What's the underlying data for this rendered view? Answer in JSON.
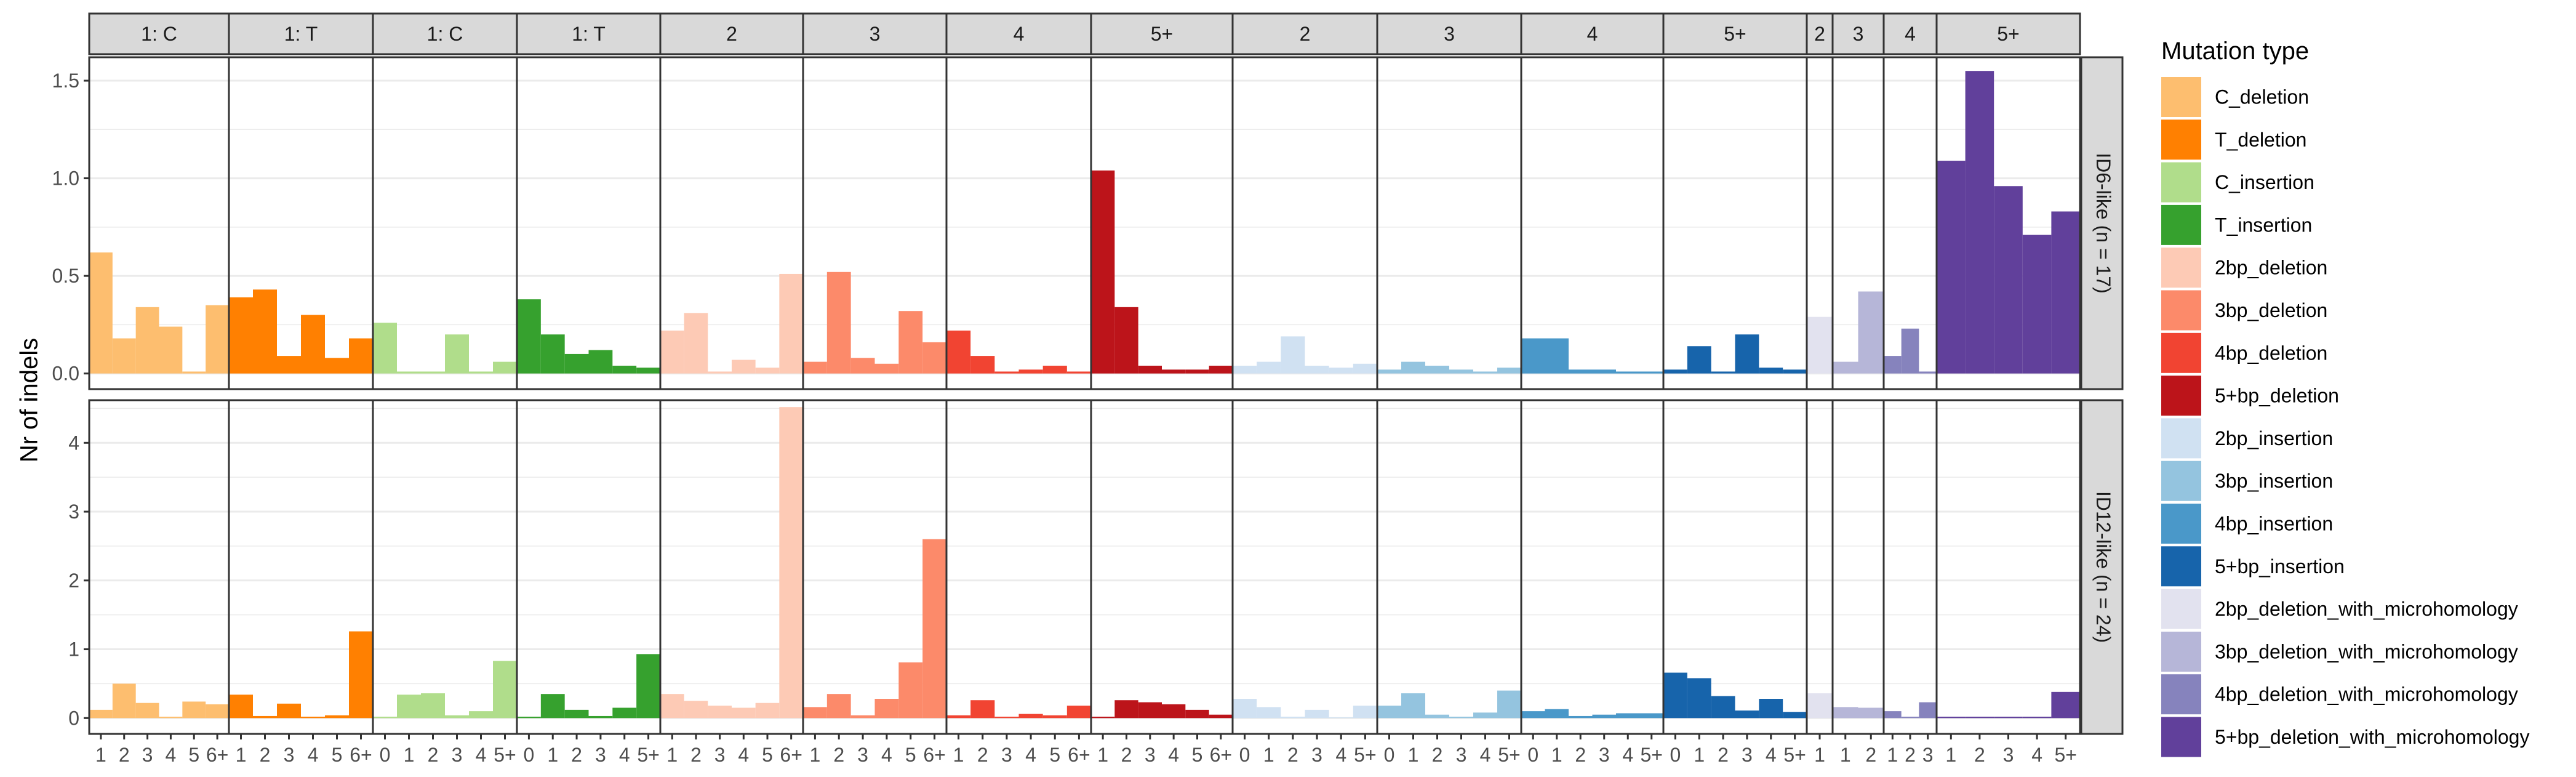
{
  "chart_data": {
    "type": "bar",
    "ylabel": "Nr of indels",
    "legend_title": "Mutation type",
    "legend_position": "right",
    "legend": [
      {
        "label": "C_deletion",
        "color": "#FDBE6F"
      },
      {
        "label": "T_deletion",
        "color": "#FF8001"
      },
      {
        "label": "C_insertion",
        "color": "#B0DD8B"
      },
      {
        "label": "T_insertion",
        "color": "#36A12E"
      },
      {
        "label": "2bp_deletion",
        "color": "#FDCAB5"
      },
      {
        "label": "3bp_deletion",
        "color": "#FC8A6A"
      },
      {
        "label": "4bp_deletion",
        "color": "#F14432"
      },
      {
        "label": "5+bp_deletion",
        "color": "#BC141A"
      },
      {
        "label": "2bp_insertion",
        "color": "#D0E1F2"
      },
      {
        "label": "3bp_insertion",
        "color": "#94C4DF"
      },
      {
        "label": "4bp_insertion",
        "color": "#4A98C9"
      },
      {
        "label": "5+bp_insertion",
        "color": "#1764AB"
      },
      {
        "label": "2bp_deletion_with_microhomology",
        "color": "#E2E2EF"
      },
      {
        "label": "3bp_deletion_with_microhomology",
        "color": "#B6B6D8"
      },
      {
        "label": "4bp_deletion_with_microhomology",
        "color": "#8683BD"
      },
      {
        "label": "5+bp_deletion_with_microhomology",
        "color": "#61409B"
      }
    ],
    "groups": [
      {
        "strip": "1: C",
        "color": "#FDBE6F",
        "ticks": [
          "1",
          "2",
          "3",
          "4",
          "5",
          "6+"
        ]
      },
      {
        "strip": "1: T",
        "color": "#FF8001",
        "ticks": [
          "1",
          "2",
          "3",
          "4",
          "5",
          "6+"
        ]
      },
      {
        "strip": "1: C",
        "color": "#B0DD8B",
        "ticks": [
          "0",
          "1",
          "2",
          "3",
          "4",
          "5+"
        ]
      },
      {
        "strip": "1: T",
        "color": "#36A12E",
        "ticks": [
          "0",
          "1",
          "2",
          "3",
          "4",
          "5+"
        ]
      },
      {
        "strip": "2",
        "color": "#FDCAB5",
        "ticks": [
          "1",
          "2",
          "3",
          "4",
          "5",
          "6+"
        ]
      },
      {
        "strip": "3",
        "color": "#FC8A6A",
        "ticks": [
          "1",
          "2",
          "3",
          "4",
          "5",
          "6+"
        ]
      },
      {
        "strip": "4",
        "color": "#F14432",
        "ticks": [
          "1",
          "2",
          "3",
          "4",
          "5",
          "6+"
        ]
      },
      {
        "strip": "5+",
        "color": "#BC141A",
        "ticks": [
          "1",
          "2",
          "3",
          "4",
          "5",
          "6+"
        ]
      },
      {
        "strip": "2",
        "color": "#D0E1F2",
        "ticks": [
          "0",
          "1",
          "2",
          "3",
          "4",
          "5+"
        ]
      },
      {
        "strip": "3",
        "color": "#94C4DF",
        "ticks": [
          "0",
          "1",
          "2",
          "3",
          "4",
          "5+"
        ]
      },
      {
        "strip": "4",
        "color": "#4A98C9",
        "ticks": [
          "0",
          "1",
          "2",
          "3",
          "4",
          "5+"
        ]
      },
      {
        "strip": "5+",
        "color": "#1764AB",
        "ticks": [
          "0",
          "1",
          "2",
          "3",
          "4",
          "5+"
        ]
      },
      {
        "strip": "2",
        "color": "#E2E2EF",
        "ticks": [
          "1"
        ]
      },
      {
        "strip": "3",
        "color": "#B6B6D8",
        "ticks": [
          "1",
          "2"
        ]
      },
      {
        "strip": "4",
        "color": "#8683BD",
        "ticks": [
          "1",
          "2",
          "3"
        ]
      },
      {
        "strip": "5+",
        "color": "#61409B",
        "ticks": [
          "1",
          "2",
          "3",
          "4",
          "5+"
        ]
      }
    ],
    "panels": [
      {
        "label": "ID6-like (n = 17)",
        "ylim": [
          -0.08,
          1.62
        ],
        "yticks": [
          0.0,
          0.5,
          1.0,
          1.5
        ],
        "ytick_labels": [
          "0.0",
          "0.5",
          "1.0",
          "1.5"
        ],
        "values": [
          [
            0.62,
            0.18,
            0.34,
            0.24,
            0.01,
            0.35
          ],
          [
            0.39,
            0.43,
            0.09,
            0.3,
            0.08,
            0.18
          ],
          [
            0.26,
            0.01,
            0.01,
            0.2,
            0.01,
            0.06
          ],
          [
            0.38,
            0.2,
            0.1,
            0.12,
            0.04,
            0.03
          ],
          [
            0.22,
            0.31,
            0.01,
            0.07,
            0.03,
            0.51
          ],
          [
            0.06,
            0.52,
            0.08,
            0.05,
            0.32,
            0.16
          ],
          [
            0.22,
            0.09,
            0.01,
            0.02,
            0.04,
            0.01
          ],
          [
            1.04,
            0.34,
            0.04,
            0.02,
            0.02,
            0.04
          ],
          [
            0.04,
            0.06,
            0.19,
            0.04,
            0.03,
            0.05
          ],
          [
            0.02,
            0.06,
            0.04,
            0.02,
            0.01,
            0.03
          ],
          [
            0.18,
            0.18,
            0.02,
            0.02,
            0.01,
            0.01
          ],
          [
            0.02,
            0.14,
            0.01,
            0.2,
            0.03,
            0.02
          ],
          [
            0.29
          ],
          [
            0.06,
            0.42
          ],
          [
            0.09,
            0.23,
            0.01
          ],
          [
            1.09,
            1.55,
            0.96,
            0.71,
            0.83
          ]
        ]
      },
      {
        "label": "ID12-like (n = 24)",
        "ylim": [
          -0.23,
          4.62
        ],
        "yticks": [
          0,
          1,
          2,
          3,
          4
        ],
        "ytick_labels": [
          "0",
          "1",
          "2",
          "3",
          "4"
        ],
        "values": [
          [
            0.12,
            0.5,
            0.22,
            0.02,
            0.24,
            0.2
          ],
          [
            0.34,
            0.03,
            0.21,
            0.02,
            0.04,
            1.26
          ],
          [
            0.02,
            0.34,
            0.36,
            0.04,
            0.1,
            0.83
          ],
          [
            0.02,
            0.35,
            0.12,
            0.03,
            0.15,
            0.93
          ],
          [
            0.35,
            0.25,
            0.18,
            0.15,
            0.22,
            4.52
          ],
          [
            0.16,
            0.35,
            0.04,
            0.28,
            0.81,
            2.6
          ],
          [
            0.04,
            0.26,
            0.02,
            0.06,
            0.04,
            0.18
          ],
          [
            0.02,
            0.26,
            0.23,
            0.2,
            0.12,
            0.05
          ],
          [
            0.28,
            0.16,
            0.02,
            0.12,
            0.01,
            0.18
          ],
          [
            0.18,
            0.36,
            0.05,
            0.02,
            0.08,
            0.4
          ],
          [
            0.1,
            0.13,
            0.03,
            0.05,
            0.07,
            0.07
          ],
          [
            0.66,
            0.58,
            0.32,
            0.11,
            0.28,
            0.09
          ],
          [
            0.36
          ],
          [
            0.16,
            0.15
          ],
          [
            0.1,
            0.02,
            0.23
          ],
          [
            0.02,
            0.02,
            0.02,
            0.02,
            0.38
          ]
        ]
      }
    ]
  }
}
